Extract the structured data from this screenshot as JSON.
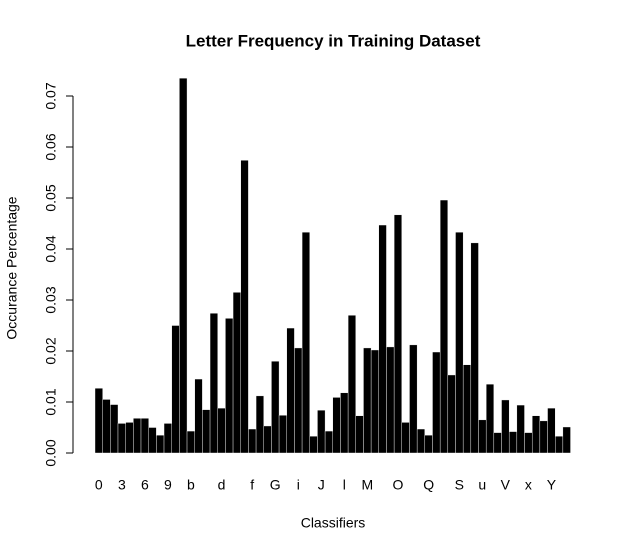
{
  "chart_data": {
    "type": "bar",
    "title": "Letter Frequency in Training Dataset",
    "xlabel": "Classifiers",
    "ylabel": "Occurance Percentage",
    "color": "#000000",
    "categories": [
      "0",
      null,
      null,
      "3",
      null,
      null,
      "6",
      null,
      null,
      "9",
      null,
      null,
      "b",
      null,
      null,
      null,
      "d",
      null,
      null,
      null,
      "f",
      null,
      null,
      "G",
      null,
      null,
      "i",
      null,
      null,
      "J",
      null,
      null,
      "l",
      null,
      null,
      "M",
      null,
      null,
      null,
      "O",
      null,
      null,
      null,
      "Q",
      null,
      null,
      null,
      "S",
      null,
      null,
      "u",
      null,
      null,
      "V",
      null,
      null,
      "x",
      null,
      null,
      "Y",
      null,
      null
    ],
    "values": [
      0.0127,
      0.0105,
      0.0095,
      0.0058,
      0.006,
      0.0068,
      0.0068,
      0.005,
      0.0035,
      0.0058,
      0.025,
      0.0735,
      0.0043,
      0.0145,
      0.0085,
      0.0274,
      0.0088,
      0.0264,
      0.0315,
      0.0574,
      0.0047,
      0.0112,
      0.0053,
      0.018,
      0.0074,
      0.0245,
      0.0206,
      0.0433,
      0.0033,
      0.0084,
      0.0043,
      0.0109,
      0.0118,
      0.027,
      0.0073,
      0.0206,
      0.0202,
      0.0447,
      0.0208,
      0.0467,
      0.006,
      0.0212,
      0.0047,
      0.0035,
      0.0198,
      0.0496,
      0.0153,
      0.0433,
      0.0173,
      0.0412,
      0.0065,
      0.0135,
      0.004,
      0.0104,
      0.0042,
      0.0094,
      0.004,
      0.0073,
      0.0063,
      0.0088,
      0.0033,
      0.0051
    ],
    "ylim": [
      0,
      0.07
    ],
    "yticks": [
      {
        "value": 0,
        "label": "0.00"
      },
      {
        "value": 0.01,
        "label": "0.01"
      },
      {
        "value": 0.02,
        "label": "0.02"
      },
      {
        "value": 0.03,
        "label": "0.03"
      },
      {
        "value": 0.04,
        "label": "0.04"
      },
      {
        "value": 0.05,
        "label": "0.05"
      },
      {
        "value": 0.06,
        "label": "0.06"
      },
      {
        "value": 0.07,
        "label": "0.07"
      }
    ]
  }
}
